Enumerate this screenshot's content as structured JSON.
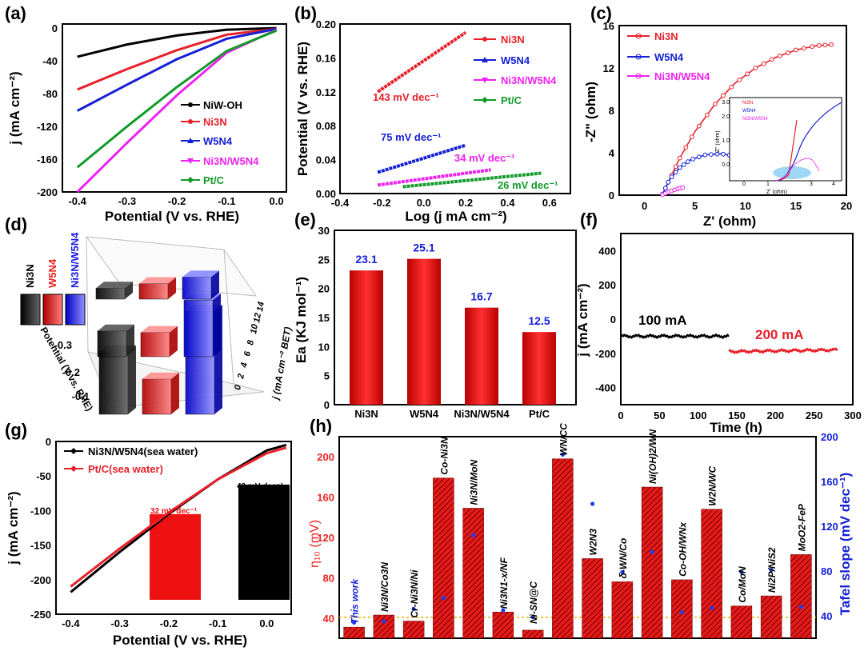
{
  "chart_data": [
    {
      "panel": "(a)",
      "type": "line",
      "xlabel": "Potential (V vs. RHE)",
      "ylabel": "j (mA cm⁻²)",
      "xlim": [
        -0.43,
        0.02
      ],
      "ylim": [
        -200,
        5
      ],
      "xticks": [
        "-0.4",
        "-0.3",
        "-0.2",
        "-0.1",
        "0.0"
      ],
      "yticks": [
        "0",
        "-40",
        "-80",
        "-120",
        "-160",
        "-200"
      ],
      "series": [
        {
          "name": "NiW-OH",
          "color": "#000000",
          "x": [
            -0.4,
            -0.3,
            -0.2,
            -0.1,
            0.0
          ],
          "y": [
            -35,
            -20,
            -9,
            -2,
            0
          ]
        },
        {
          "name": "Ni3N",
          "color": "#e8202a",
          "x": [
            -0.4,
            -0.3,
            -0.2,
            -0.1,
            0.0
          ],
          "y": [
            -75,
            -50,
            -27,
            -8,
            -1
          ]
        },
        {
          "name": "W5N4",
          "color": "#1420d6",
          "x": [
            -0.4,
            -0.3,
            -0.2,
            -0.1,
            0.0
          ],
          "y": [
            -101,
            -69,
            -38,
            -13,
            -1
          ]
        },
        {
          "name": "Ni3N/W5N4",
          "color": "#ee22ee",
          "x": [
            -0.4,
            -0.3,
            -0.2,
            -0.1,
            0.0
          ],
          "y": [
            -200,
            -140,
            -82,
            -30,
            -2
          ]
        },
        {
          "name": "Pt/C",
          "color": "#119a2a",
          "x": [
            -0.4,
            -0.3,
            -0.2,
            -0.1,
            0.0
          ],
          "y": [
            -170,
            -120,
            -72,
            -28,
            -3
          ]
        }
      ]
    },
    {
      "panel": "(b)",
      "type": "line",
      "xlabel": "Log (j mA cm⁻²)",
      "ylabel": "Potential (V vs. RHE)",
      "xlim": [
        -0.4,
        0.7
      ],
      "ylim": [
        0,
        0.2
      ],
      "xticks": [
        "-0.4",
        "-0.2",
        "0.0",
        "0.2",
        "0.4",
        "0.6"
      ],
      "yticks": [
        "0.00",
        "0.04",
        "0.08",
        "0.12",
        "0.16",
        "0.20"
      ],
      "series": [
        {
          "name": "Ni3N",
          "color": "#e8202a",
          "x": [
            -0.22,
            0.2
          ],
          "y": [
            0.12,
            0.19
          ],
          "label": "143 mV dec⁻¹"
        },
        {
          "name": "W5N4",
          "color": "#1420d6",
          "x": [
            -0.22,
            0.2
          ],
          "y": [
            0.025,
            0.057
          ],
          "label": "75 mV dec⁻¹"
        },
        {
          "name": "Ni3N/W5N4",
          "color": "#ee22ee",
          "x": [
            -0.22,
            0.32
          ],
          "y": [
            0.01,
            0.028
          ],
          "label": "34 mV dec⁻¹"
        },
        {
          "name": "Pt/C",
          "color": "#119a2a",
          "x": [
            -0.1,
            0.56
          ],
          "y": [
            0.008,
            0.024
          ],
          "label": "26 mV dec⁻¹"
        }
      ]
    },
    {
      "panel": "(c)",
      "type": "line",
      "xlabel": "Z' (ohm)",
      "ylabel": "-Z\" (ohm)",
      "xlim": [
        -2.5,
        20
      ],
      "ylim": [
        0,
        16
      ],
      "xticks": [
        "0",
        "5",
        "10",
        "15",
        "20"
      ],
      "yticks": [
        "0",
        "4",
        "8",
        "12",
        "16"
      ],
      "series": [
        {
          "name": "Ni3N",
          "color": "#e8202a",
          "x": [
            1.8,
            2.5,
            3.5,
            5,
            7,
            9,
            11,
            13,
            15,
            17,
            18.5
          ],
          "y": [
            0.1,
            1.5,
            3.5,
            6,
            8.6,
            10.6,
            12,
            13,
            13.7,
            14.1,
            14.2
          ]
        },
        {
          "name": "W5N4",
          "color": "#1420d6",
          "x": [
            1.8,
            2.5,
            3.5,
            4.5,
            6,
            7.5,
            9,
            10.5,
            12,
            13.5,
            14.2
          ],
          "y": [
            0.1,
            1.5,
            2.6,
            3.3,
            3.8,
            3.9,
            3.7,
            3.1,
            2.4,
            1.9,
            2.2
          ]
        },
        {
          "name": "Ni3N/W5N4",
          "color": "#ee22ee",
          "x": [
            1.8,
            2.5,
            3.3,
            3.9
          ],
          "y": [
            0.05,
            0.35,
            0.6,
            0.75
          ]
        }
      ],
      "inset": {
        "xlabel": "Z' (ohm)",
        "ylabel": "-Z\" (ohm)",
        "xticks": [
          "0",
          "1",
          "2",
          "3",
          "4"
        ],
        "yticks": [
          "0.0",
          "0.5",
          "1.0",
          "1.5",
          "2.0",
          "2.5",
          "3.0"
        ],
        "legend": [
          "Ni3N",
          "W5N4",
          "Ni3N/W5N4"
        ]
      }
    },
    {
      "panel": "(d)",
      "type": "bar",
      "zlabel": "j (mA cm⁻² BET)",
      "xlabel": "Potential (V vs. RHE)",
      "potential_ticks": [
        "-0.3",
        "-0.2",
        "-0.1"
      ],
      "z_ticks": [
        "0",
        "2",
        "4",
        "6",
        "8",
        "10",
        "12",
        "14"
      ],
      "series": [
        {
          "name": "Ni3N",
          "color": "#000000",
          "values": [
            1.5,
            3.5,
            8.5
          ]
        },
        {
          "name": "W5N4",
          "color": "#ee2222",
          "values": [
            2.1,
            3.3,
            4.8
          ]
        },
        {
          "name": "Ni3N/W5N4",
          "color": "#1a1ae8",
          "values": [
            3.0,
            7.7,
            14.0
          ]
        }
      ]
    },
    {
      "panel": "(e)",
      "type": "bar",
      "categories": [
        "Ni3N",
        "W5N4",
        "Ni3N/W5N4",
        "Pt/C"
      ],
      "values": [
        23.1,
        25.1,
        16.7,
        12.5
      ],
      "value_labels": [
        "23.1",
        "25.1",
        "16.7",
        "12.5"
      ],
      "ylabel": "Ea (KJ mol⁻¹)",
      "ylim": [
        0,
        30
      ],
      "yticks": [
        "0",
        "5",
        "10",
        "15",
        "20",
        "25",
        "30"
      ]
    },
    {
      "panel": "(f)",
      "type": "line",
      "xlabel": "Time (h)",
      "ylabel": "j (mA cm⁻²)",
      "xlim": [
        0,
        300
      ],
      "ylim": [
        -500,
        500
      ],
      "xticks": [
        "0",
        "50",
        "100",
        "150",
        "200",
        "250",
        "300"
      ],
      "yticks": [
        "400",
        "200",
        "0",
        "-200",
        "-400"
      ],
      "series": [
        {
          "name": "100 mA",
          "color": "#000000",
          "x": [
            0,
            140
          ],
          "y": [
            -100,
            -100
          ],
          "label": "100 mA"
        },
        {
          "name": "200 mA",
          "color": "#e8202a",
          "x": [
            140,
            280
          ],
          "y": [
            -190,
            -180
          ],
          "label": "200 mA"
        }
      ]
    },
    {
      "panel": "(g)",
      "type": "line",
      "xlabel": "Potential (V vs. RHE)",
      "ylabel": "j (mA cm⁻²)",
      "xlim": [
        -0.43,
        0.05
      ],
      "ylim": [
        -250,
        0
      ],
      "xticks": [
        "-0.4",
        "-0.3",
        "-0.2",
        "-0.1",
        "0.0"
      ],
      "yticks": [
        "0",
        "-50",
        "-100",
        "-150",
        "-200",
        "-250"
      ],
      "series": [
        {
          "name": "Ni3N/W5N4(sea water)",
          "color": "#000000",
          "x": [
            -0.4,
            -0.3,
            -0.2,
            -0.1,
            0.0,
            0.04
          ],
          "y": [
            -218,
            -160,
            -105,
            -55,
            -13,
            -5
          ]
        },
        {
          "name": "Pt/C(sea water)",
          "color": "#e8202a",
          "x": [
            -0.4,
            -0.3,
            -0.2,
            -0.1,
            0.0,
            0.04
          ],
          "y": [
            -210,
            -155,
            -103,
            -55,
            -17,
            -9
          ]
        }
      ],
      "inset_bars": [
        {
          "name": "Pt/C",
          "label": "32 mV dec⁻¹",
          "value": 32,
          "color": "#ee1111"
        },
        {
          "name": "Ni3N/W5N4",
          "label": "43 mV dec⁻¹",
          "value": 43,
          "color": "#000000"
        }
      ]
    },
    {
      "panel": "(h)",
      "type": "bar",
      "ylabel": "η₁₀ (mV)",
      "y2label": "Tafel slope (mV dec⁻¹)",
      "ylim": [
        20,
        220
      ],
      "y2lim": [
        20,
        200
      ],
      "yticks": [
        "40",
        "80",
        "120",
        "160",
        "200"
      ],
      "y2ticks": [
        "40",
        "80",
        "120",
        "160",
        "200"
      ],
      "categories": [
        "This work",
        "Ni3N/Co3N",
        "Cr-Ni3N/Ni",
        "Co-Ni3N",
        "Ni3N/MoN",
        "Ni3N1-x/NF",
        "Ni-SN@C",
        "WN/CC",
        "W2N3",
        "δ-WN/Co",
        "Ni(OH)2/WN",
        "Co-OH/WNx",
        "W2N/WC",
        "Co/MoN",
        "Ni2P/NiS2",
        "MoO2-FeP"
      ],
      "values": [
        31,
        43,
        37,
        179,
        149,
        46,
        28,
        198,
        99,
        76,
        170,
        78,
        148,
        52,
        62,
        103
      ],
      "tafel": [
        34,
        35,
        46,
        56,
        112,
        45,
        39,
        184,
        140,
        79,
        97,
        43,
        47,
        79,
        81,
        48
      ]
    }
  ],
  "labels": {
    "a": "(a)",
    "b": "(b)",
    "c": "(c)",
    "d": "(d)",
    "e": "(e)",
    "f": "(f)",
    "g": "(g)",
    "h": "(h)",
    "leg_a": [
      "NiW-OH",
      "Ni3N",
      "W5N4",
      "Ni3N/W5N4",
      "Pt/C"
    ],
    "leg_b": [
      "Ni3N",
      "W5N4",
      "Ni3N/W5N4",
      "Pt/C"
    ],
    "leg_c": [
      "Ni3N",
      "W5N4",
      "Ni3N/W5N4"
    ],
    "leg_d": [
      "Ni3N",
      "W5N4",
      "Ni3N/W5N4"
    ],
    "leg_g": [
      "Ni3N/W5N4(sea water)",
      "Pt/C(sea water)"
    ]
  }
}
